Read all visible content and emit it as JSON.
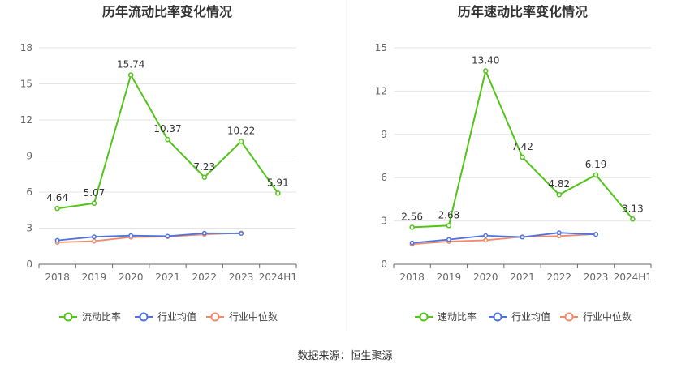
{
  "source_text": "数据来源：恒生聚源",
  "colors": {
    "main": "#52c41a",
    "avg": "#4e73df",
    "median": "#f08b6a",
    "grid": "#e6e6e6",
    "axis": "#666666"
  },
  "chart_data": [
    {
      "type": "line",
      "title": "历年流动比率变化情况",
      "categories": [
        "2018",
        "2019",
        "2020",
        "2021",
        "2022",
        "2023",
        "2024H1"
      ],
      "ylim": [
        0,
        18
      ],
      "yticks": [
        "0",
        "3",
        "6",
        "9",
        "12",
        "15",
        "18"
      ],
      "series": [
        {
          "name": "流动比率",
          "values": [
            4.64,
            5.07,
            15.74,
            10.37,
            7.23,
            10.22,
            5.91
          ],
          "labels": [
            "4.64",
            "5.07",
            "15.74",
            "10.37",
            "7.23",
            "10.22",
            "5.91"
          ]
        },
        {
          "name": "行业均值",
          "values": [
            1.98,
            2.28,
            2.38,
            2.33,
            2.58,
            2.56,
            null
          ]
        },
        {
          "name": "行业中位数",
          "values": [
            1.82,
            1.92,
            2.25,
            2.29,
            2.48,
            2.59,
            null
          ]
        }
      ],
      "grid": true,
      "legend": "bottom"
    },
    {
      "type": "line",
      "title": "历年速动比率变化情况",
      "categories": [
        "2018",
        "2019",
        "2020",
        "2021",
        "2022",
        "2023",
        "2024H1"
      ],
      "ylim": [
        0,
        15
      ],
      "yticks": [
        "0",
        "3",
        "6",
        "9",
        "12",
        "15"
      ],
      "series": [
        {
          "name": "速动比率",
          "values": [
            2.56,
            2.68,
            13.4,
            7.42,
            4.82,
            6.19,
            3.13
          ],
          "labels": [
            "2.56",
            "2.68",
            "13.40",
            "7.42",
            "4.82",
            "6.19",
            "3.13"
          ]
        },
        {
          "name": "行业均值",
          "values": [
            1.48,
            1.71,
            1.98,
            1.88,
            2.18,
            2.06,
            null
          ]
        },
        {
          "name": "行业中位数",
          "values": [
            1.39,
            1.58,
            1.66,
            1.9,
            1.95,
            2.09,
            null
          ]
        }
      ],
      "grid": true,
      "legend": "bottom"
    }
  ]
}
